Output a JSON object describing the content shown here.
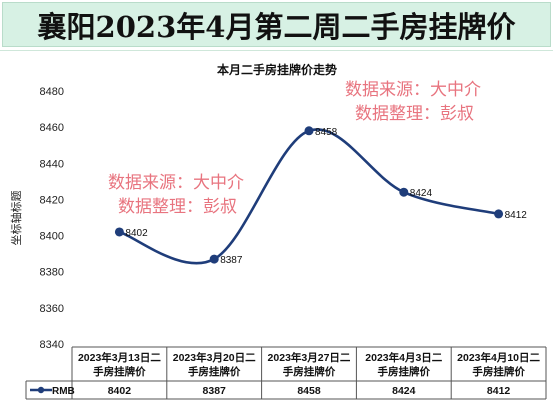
{
  "header": {
    "title": "襄阳2023年4月第二周二手房挂牌价"
  },
  "watermarks": [
    {
      "line1": "数据来源：大中介",
      "line2": "数据整理：彭叔"
    },
    {
      "line1": "数据来源：大中介",
      "line2": "数据整理：彭叔"
    }
  ],
  "colors": {
    "header_bg": "#d7f1e4",
    "series": "#1f3d7a",
    "watermark": "#e8747f",
    "table_border": "#555555"
  },
  "chart_data": {
    "type": "line",
    "title": "本月二手房挂牌价走势",
    "ylabel": "坐标轴标题",
    "xlabel": "",
    "ylim": [
      8340,
      8480
    ],
    "yticks": [
      8340,
      8360,
      8380,
      8400,
      8420,
      8440,
      8460,
      8480
    ],
    "categories": [
      "2023年3月13日二手房挂牌价",
      "2023年3月20日二手房挂牌价",
      "2023年3月27日二手房挂牌价",
      "2023年4月3日二手房挂牌价",
      "2023年4月10日二手房挂牌价"
    ],
    "category_lines": [
      [
        "2023年3月13日二",
        "手房挂牌价"
      ],
      [
        "2023年3月20日二",
        "手房挂牌价"
      ],
      [
        "2023年3月27日二",
        "手房挂牌价"
      ],
      [
        "2023年4月3日二",
        "手房挂牌价"
      ],
      [
        "2023年4月10日二",
        "手房挂牌价"
      ]
    ],
    "series": [
      {
        "name": "RMB",
        "values": [
          8402,
          8387,
          8458,
          8424,
          8412
        ]
      }
    ],
    "data_labels": [
      "8402",
      "8387",
      "8458",
      "8424",
      "8412"
    ],
    "grid": false,
    "legend": "data-table-left",
    "smooth": true
  }
}
